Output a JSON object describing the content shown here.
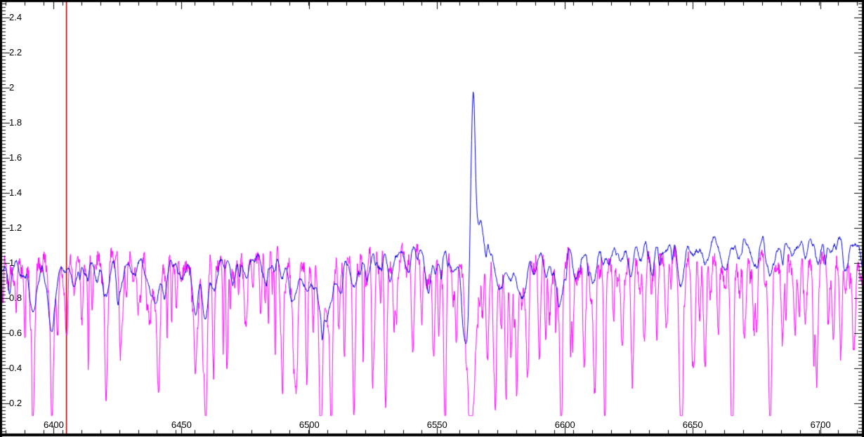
{
  "window": {
    "title": ""
  },
  "axes": {
    "x_tick_labels": [
      "6400",
      "6450",
      "6500",
      "6550",
      "6600",
      "6650",
      "6700"
    ],
    "y_tick_labels": [
      "2.4",
      "2.2",
      "2",
      "1.8",
      "1.6",
      "1.4",
      "1.2",
      "1",
      "0.8",
      "0.6",
      "0.4",
      "0.2"
    ]
  },
  "colors": {
    "frame": "#000000",
    "background": "#ffffff",
    "blue_spectrum": "#0000dd",
    "magenta_spectrum": "#ff00ff",
    "marker_line": "#b00000"
  },
  "chart_data": {
    "type": "line",
    "title": "",
    "xlabel": "",
    "ylabel": "",
    "grid": false,
    "legend": null,
    "xlim": [
      6379,
      6717
    ],
    "ylim": [
      0.008,
      2.5
    ],
    "x_major_ticks": [
      6400,
      6450,
      6500,
      6550,
      6600,
      6650,
      6700
    ],
    "x_minor_interval": 7.4,
    "x_minor_phase": 2.2,
    "y_major_ticks": [
      0.2,
      0.4,
      0.6,
      0.8,
      1.0,
      1.2,
      1.4,
      1.6,
      1.8,
      2.0,
      2.2,
      2.4
    ],
    "y_minor_interval": 0.02,
    "sample_step": 0.15,
    "marker_line": {
      "x": 6405,
      "color": "#b00000"
    },
    "stellar_features": [
      [
        6382.5,
        0.1,
        1.0
      ],
      [
        6388,
        0.06,
        0.8
      ],
      [
        6392,
        0.3,
        1.3
      ],
      [
        6399.3,
        0.38,
        1.4
      ],
      [
        6404,
        0.08,
        0.8
      ],
      [
        6408,
        0.14,
        1.0
      ],
      [
        6412,
        0.1,
        0.9
      ],
      [
        6416.5,
        0.08,
        0.8
      ],
      [
        6420.5,
        0.2,
        1.3
      ],
      [
        6426,
        0.17,
        1.1
      ],
      [
        6431,
        0.1,
        0.9
      ],
      [
        6439.5,
        0.24,
        2.2
      ],
      [
        6443.5,
        0.12,
        1.0
      ],
      [
        6450,
        0.14,
        1.1
      ],
      [
        6455.5,
        0.28,
        1.3
      ],
      [
        6459.5,
        0.34,
        1.2
      ],
      [
        6463,
        0.15,
        1.0
      ],
      [
        6470,
        0.13,
        1.1
      ],
      [
        6475.5,
        0.1,
        0.9
      ],
      [
        6483,
        0.1,
        0.9
      ],
      [
        6489,
        0.08,
        0.9
      ],
      [
        6494,
        0.22,
        1.8
      ],
      [
        6499,
        0.18,
        1.3
      ],
      [
        6506,
        0.38,
        2.6
      ],
      [
        6512,
        0.14,
        1.2
      ],
      [
        6517.5,
        0.2,
        1.3
      ],
      [
        6522.5,
        0.12,
        1.0
      ],
      [
        6527,
        0.08,
        0.9
      ],
      [
        6532,
        0.14,
        1.2
      ],
      [
        6538,
        0.1,
        1.0
      ],
      [
        6546.5,
        0.22,
        1.4
      ],
      [
        6551.5,
        0.12,
        1.0
      ],
      [
        6556,
        0.16,
        1.1
      ],
      [
        6574.5,
        0.2,
        1.2
      ],
      [
        6578.5,
        0.12,
        1.0
      ],
      [
        6583,
        0.26,
        1.6
      ],
      [
        6588,
        0.08,
        0.9
      ],
      [
        6593,
        0.12,
        1.1
      ],
      [
        6598,
        0.28,
        1.4
      ],
      [
        6604.5,
        0.16,
        1.1
      ],
      [
        6611,
        0.2,
        1.4
      ],
      [
        6617,
        0.1,
        1.0
      ],
      [
        6621.5,
        0.1,
        0.9
      ],
      [
        6625.5,
        0.14,
        1.1
      ],
      [
        6629.5,
        0.09,
        0.9
      ],
      [
        6634,
        0.12,
        1.0
      ],
      [
        6639,
        0.08,
        0.9
      ],
      [
        6645.5,
        0.22,
        1.3
      ],
      [
        6650.5,
        0.1,
        1.0
      ],
      [
        6655,
        0.12,
        1.1
      ],
      [
        6662.5,
        0.16,
        1.3
      ],
      [
        6668,
        0.1,
        1.0
      ],
      [
        6674,
        0.14,
        1.1
      ],
      [
        6680.5,
        0.2,
        1.3
      ],
      [
        6685,
        0.08,
        0.9
      ],
      [
        6689,
        0.1,
        1.0
      ],
      [
        6694,
        0.08,
        0.9
      ],
      [
        6699,
        0.12,
        1.1
      ],
      [
        6704,
        0.08,
        0.9
      ],
      [
        6710,
        0.14,
        1.1
      ],
      [
        6717,
        0.18,
        1.2
      ]
    ],
    "series": [
      {
        "name": "magenta-spectrum",
        "color": "#ff00ff",
        "line_width": 1,
        "seed": 42,
        "noise": 0.04,
        "floor": 0.13,
        "stellar_depth_scale": 0.75,
        "stellar_sigma_scale": 0.8,
        "continuum": [
          [
            6379,
            1.02
          ],
          [
            6420,
            1.04
          ],
          [
            6450,
            1.05
          ],
          [
            6470,
            1.06
          ],
          [
            6500,
            1.04
          ],
          [
            6540,
            1.07
          ],
          [
            6560,
            1.05
          ],
          [
            6580,
            1.04
          ],
          [
            6620,
            1.05
          ],
          [
            6660,
            1.04
          ],
          [
            6717,
            1.03
          ]
        ],
        "wiggles": [
          [
            0.03,
            2.6,
            1
          ],
          [
            0.02,
            6.3,
            4
          ]
        ],
        "spike_field": {
          "seed": 5,
          "interval": 1.7,
          "base": 0.03,
          "extra": 0.6,
          "sigma_min": 0.22,
          "sigma_range": 0.25
        },
        "features": [
          [
            6392,
            0.6,
            0.5
          ],
          [
            6399.3,
            0.72,
            0.5
          ],
          [
            6405,
            0.45,
            0.5
          ],
          [
            6411,
            0.3,
            0.4
          ],
          [
            6420.5,
            0.62,
            0.5
          ],
          [
            6427,
            0.3,
            0.4
          ],
          [
            6433,
            0.35,
            0.4
          ],
          [
            6441,
            0.65,
            0.6
          ],
          [
            6448,
            0.3,
            0.4
          ],
          [
            6455.5,
            0.5,
            0.5
          ],
          [
            6459.5,
            0.7,
            0.5
          ],
          [
            6462.5,
            0.55,
            0.4
          ],
          [
            6468,
            0.4,
            0.4
          ],
          [
            6475,
            0.35,
            0.4
          ],
          [
            6481,
            0.3,
            0.4
          ],
          [
            6489,
            0.35,
            0.4
          ],
          [
            6495,
            0.6,
            0.5
          ],
          [
            6504.5,
            0.85,
            0.6
          ],
          [
            6508.5,
            0.72,
            0.5
          ],
          [
            6517.5,
            0.7,
            0.5
          ],
          [
            6525,
            0.4,
            0.4
          ],
          [
            6530,
            0.5,
            0.5
          ],
          [
            6534,
            0.4,
            0.4
          ],
          [
            6540.5,
            0.55,
            0.5
          ],
          [
            6544,
            0.4,
            0.4
          ],
          [
            6548.5,
            0.45,
            0.4
          ],
          [
            6553,
            0.7,
            0.5
          ],
          [
            6557.5,
            0.5,
            0.4
          ],
          [
            6561.2,
            0.3,
            0.7
          ],
          [
            6563.2,
            0.95,
            1.15
          ],
          [
            6565.5,
            0.28,
            0.7
          ],
          [
            6569.8,
            0.55,
            0.5
          ],
          [
            6572.5,
            0.45,
            0.4
          ],
          [
            6577,
            0.7,
            0.5
          ],
          [
            6581,
            0.4,
            0.4
          ],
          [
            6585.5,
            0.6,
            0.5
          ],
          [
            6590,
            0.5,
            0.5
          ],
          [
            6594,
            0.35,
            0.4
          ],
          [
            6598.5,
            0.62,
            0.5
          ],
          [
            6603,
            0.45,
            0.4
          ],
          [
            6607.5,
            0.65,
            0.5
          ],
          [
            6612,
            0.4,
            0.4
          ],
          [
            6615.5,
            0.5,
            0.5
          ],
          [
            6619,
            0.35,
            0.4
          ],
          [
            6622.5,
            0.48,
            0.5
          ],
          [
            6626.5,
            0.6,
            0.5
          ],
          [
            6631,
            0.5,
            0.5
          ],
          [
            6636,
            0.4,
            0.4
          ],
          [
            6640,
            0.35,
            0.4
          ],
          [
            6645.3,
            0.82,
            0.6
          ],
          [
            6650,
            0.55,
            0.5
          ],
          [
            6655,
            0.4,
            0.4
          ],
          [
            6660,
            0.35,
            0.4
          ],
          [
            6665.3,
            0.82,
            0.6
          ],
          [
            6670,
            0.4,
            0.4
          ],
          [
            6675,
            0.35,
            0.4
          ],
          [
            6680.2,
            0.8,
            0.6
          ],
          [
            6685,
            0.35,
            0.4
          ],
          [
            6690,
            0.4,
            0.4
          ],
          [
            6694,
            0.3,
            0.4
          ],
          [
            6698.5,
            0.5,
            0.5
          ],
          [
            6703,
            0.35,
            0.4
          ],
          [
            6708,
            0.4,
            0.4
          ],
          [
            6713,
            0.52,
            0.5
          ],
          [
            6717.5,
            0.45,
            0.5
          ]
        ],
        "emission": []
      },
      {
        "name": "blue-spectrum",
        "color": "#0000dd",
        "line_width": 1,
        "seed": 7,
        "noise": 0.008,
        "floor": 0.3,
        "stellar_depth_scale": 1.0,
        "stellar_sigma_scale": 1.0,
        "continuum": [
          [
            6379,
            1.0
          ],
          [
            6400,
            1.01
          ],
          [
            6430,
            1.02
          ],
          [
            6460,
            1.03
          ],
          [
            6490,
            1.02
          ],
          [
            6520,
            1.05
          ],
          [
            6545,
            1.09
          ],
          [
            6552,
            1.1
          ],
          [
            6560,
            1.08
          ],
          [
            6572,
            1.03
          ],
          [
            6585,
            1.04
          ],
          [
            6600,
            1.06
          ],
          [
            6615,
            1.1
          ],
          [
            6640,
            1.12
          ],
          [
            6665,
            1.13
          ],
          [
            6690,
            1.14
          ],
          [
            6717,
            1.13
          ]
        ],
        "wiggles": [
          [
            0.018,
            3.8,
            0
          ],
          [
            0.012,
            9.5,
            2
          ]
        ],
        "spike_field": {
          "seed": 11,
          "interval": 2.4,
          "base": 0.015,
          "extra": 0.1,
          "sigma_min": 0.3,
          "sigma_range": 0.25
        },
        "features": [
          [
            6561.4,
            0.52,
            1.5
          ]
        ],
        "emission": [
          [
            6564.1,
            1.0,
            0.95
          ],
          [
            6567.2,
            0.18,
            0.9
          ],
          [
            6569.6,
            0.1,
            0.7
          ]
        ]
      }
    ]
  }
}
